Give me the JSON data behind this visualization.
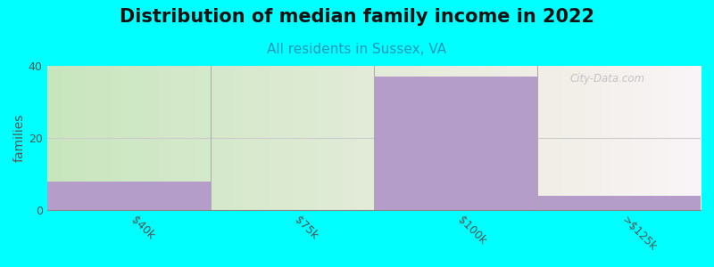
{
  "title": "Distribution of median family income in 2022",
  "subtitle": "All residents in Sussex, VA",
  "ylabel": "families",
  "categories": [
    "$40k",
    "$75k",
    "$100k",
    ">$125k"
  ],
  "values": [
    8,
    0,
    37,
    4
  ],
  "ylim": [
    0,
    40
  ],
  "yticks": [
    0,
    20,
    40
  ],
  "background_color": "#00FFFF",
  "bar_color": "#b59dca",
  "grid_color": "#cccccc",
  "title_fontsize": 15,
  "subtitle_fontsize": 11,
  "ylabel_fontsize": 10,
  "tick_fontsize": 9,
  "watermark": "City-Data.com",
  "title_color": "#111111",
  "subtitle_color": "#2299bb"
}
